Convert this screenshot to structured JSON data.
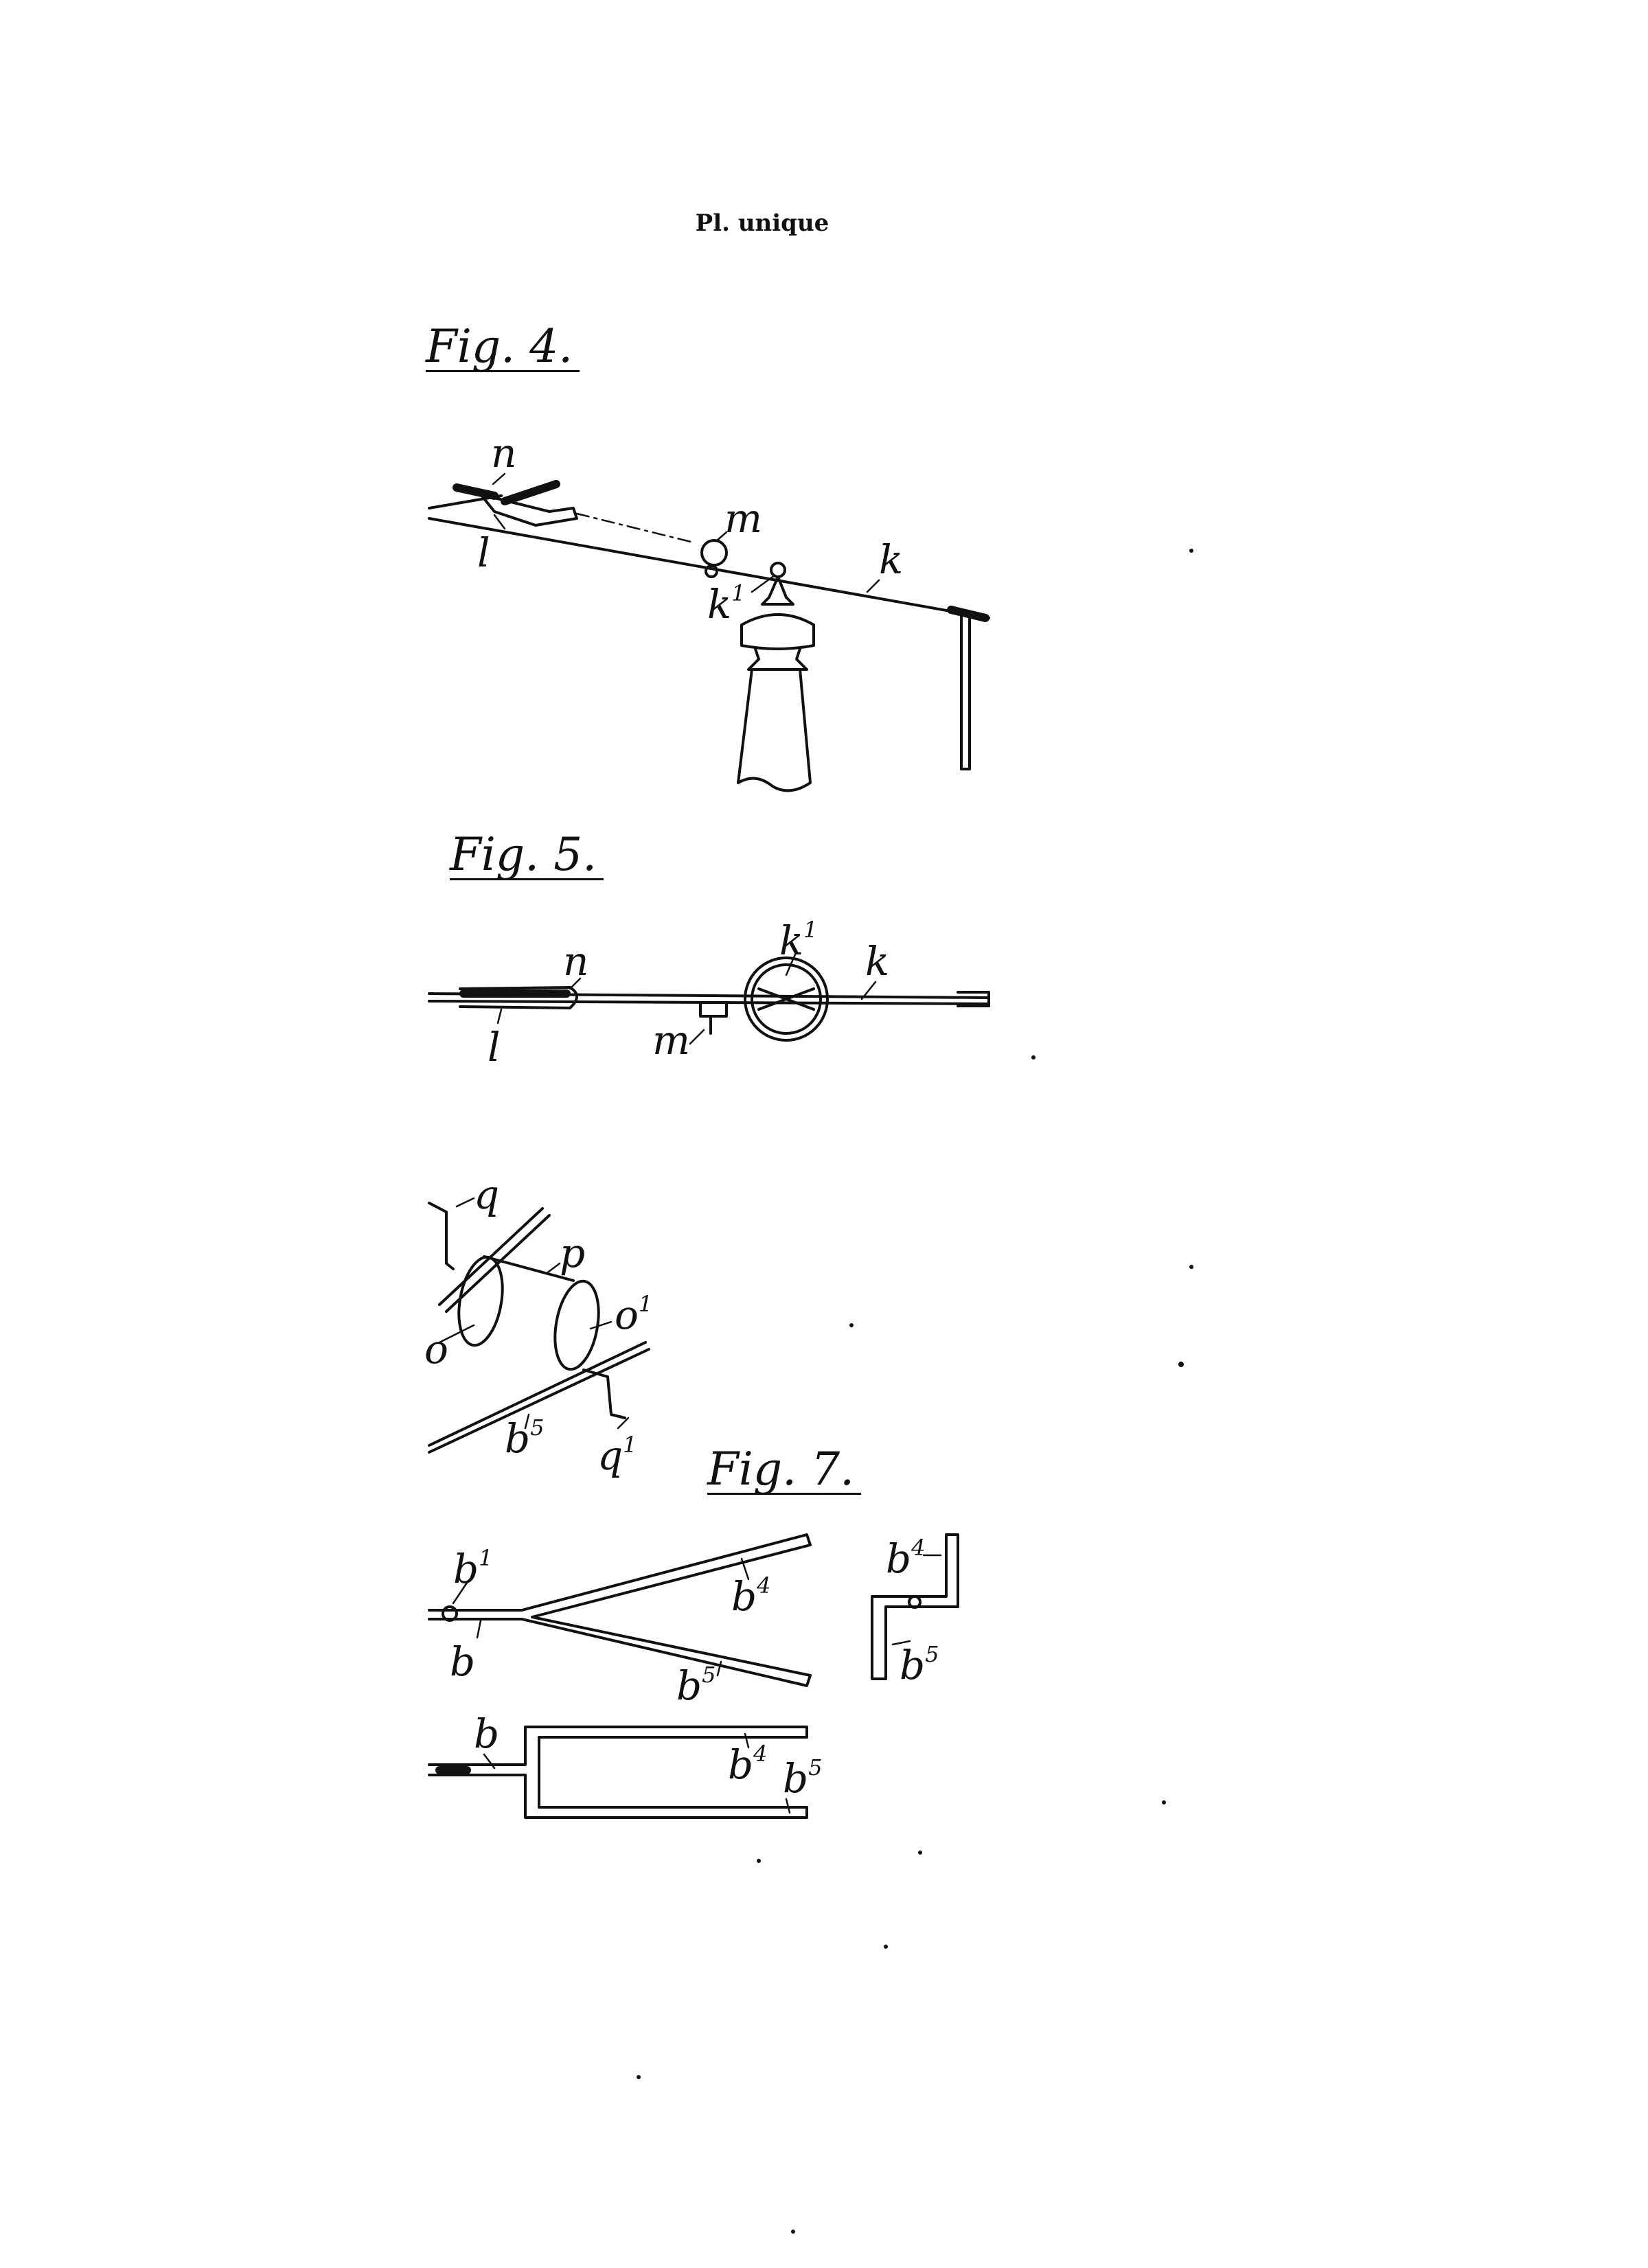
{
  "header": {
    "plate_label": "Pl. unique"
  },
  "figures": {
    "fig4": {
      "title": "Fig. 4.",
      "labels": {
        "n": "n",
        "l": "l",
        "m": "m",
        "k1": "k",
        "k1_sup": "1",
        "k": "k"
      }
    },
    "fig5": {
      "title": "Fig. 5.",
      "labels": {
        "n": "n",
        "l": "l",
        "m": "m",
        "k1": "k",
        "k1_sup": "1",
        "k": "k"
      }
    },
    "fig6": {
      "labels": {
        "q": "q",
        "p": "p",
        "o": "o",
        "o1": "o",
        "o1_sup": "1",
        "b5": "b",
        "b5_sup": "5",
        "q1": "q",
        "q1_sup": "1"
      }
    },
    "fig7": {
      "title": "Fig. 7.",
      "labels": {
        "b1": "b",
        "b1_sup": "1",
        "b_top": "b",
        "b4_top": "b",
        "b4_top_sup": "4",
        "b5_top": "b",
        "b5_top_sup": "5",
        "b4_side": "b",
        "b4_side_sup": "4",
        "b5_side": "b",
        "b5_side_sup": "5",
        "b_bottom": "b",
        "b4_bottom": "b",
        "b4_bottom_sup": "4",
        "b5_bottom": "b",
        "b5_bottom_sup": "5"
      }
    }
  }
}
